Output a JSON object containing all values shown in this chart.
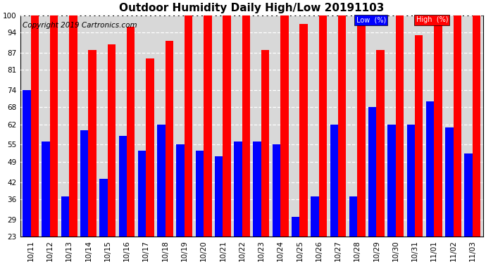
{
  "title": "Outdoor Humidity Daily High/Low 20191103",
  "copyright": "Copyright 2019 Cartronics.com",
  "categories": [
    "10/11",
    "10/12",
    "10/13",
    "10/14",
    "10/15",
    "10/16",
    "10/17",
    "10/18",
    "10/19",
    "10/20",
    "10/21",
    "10/22",
    "10/23",
    "10/24",
    "10/25",
    "10/26",
    "10/27",
    "10/28",
    "10/29",
    "10/30",
    "10/31",
    "11/01",
    "11/02",
    "11/03"
  ],
  "high_values": [
    100,
    100,
    100,
    88,
    90,
    96,
    85,
    91,
    100,
    100,
    100,
    100,
    88,
    100,
    97,
    100,
    100,
    100,
    88,
    100,
    93,
    100,
    100,
    100
  ],
  "low_values": [
    74,
    56,
    37,
    60,
    43,
    58,
    53,
    62,
    55,
    53,
    51,
    56,
    56,
    55,
    30,
    37,
    62,
    37,
    68,
    62,
    62,
    70,
    61,
    52
  ],
  "bar_color_high": "#ff0000",
  "bar_color_low": "#0000ff",
  "bg_color": "#ffffff",
  "plot_bg_color": "#d8d8d8",
  "yticks": [
    23,
    29,
    36,
    42,
    49,
    55,
    62,
    68,
    74,
    81,
    87,
    94,
    100
  ],
  "ymin": 23,
  "ymax": 100,
  "legend_low_label": "Low  (%)",
  "legend_high_label": "High  (%)",
  "title_fontsize": 11,
  "copyright_fontsize": 7.5,
  "tick_fontsize": 7.5,
  "bar_width": 0.42,
  "figwidth": 6.9,
  "figheight": 3.75,
  "dpi": 100
}
